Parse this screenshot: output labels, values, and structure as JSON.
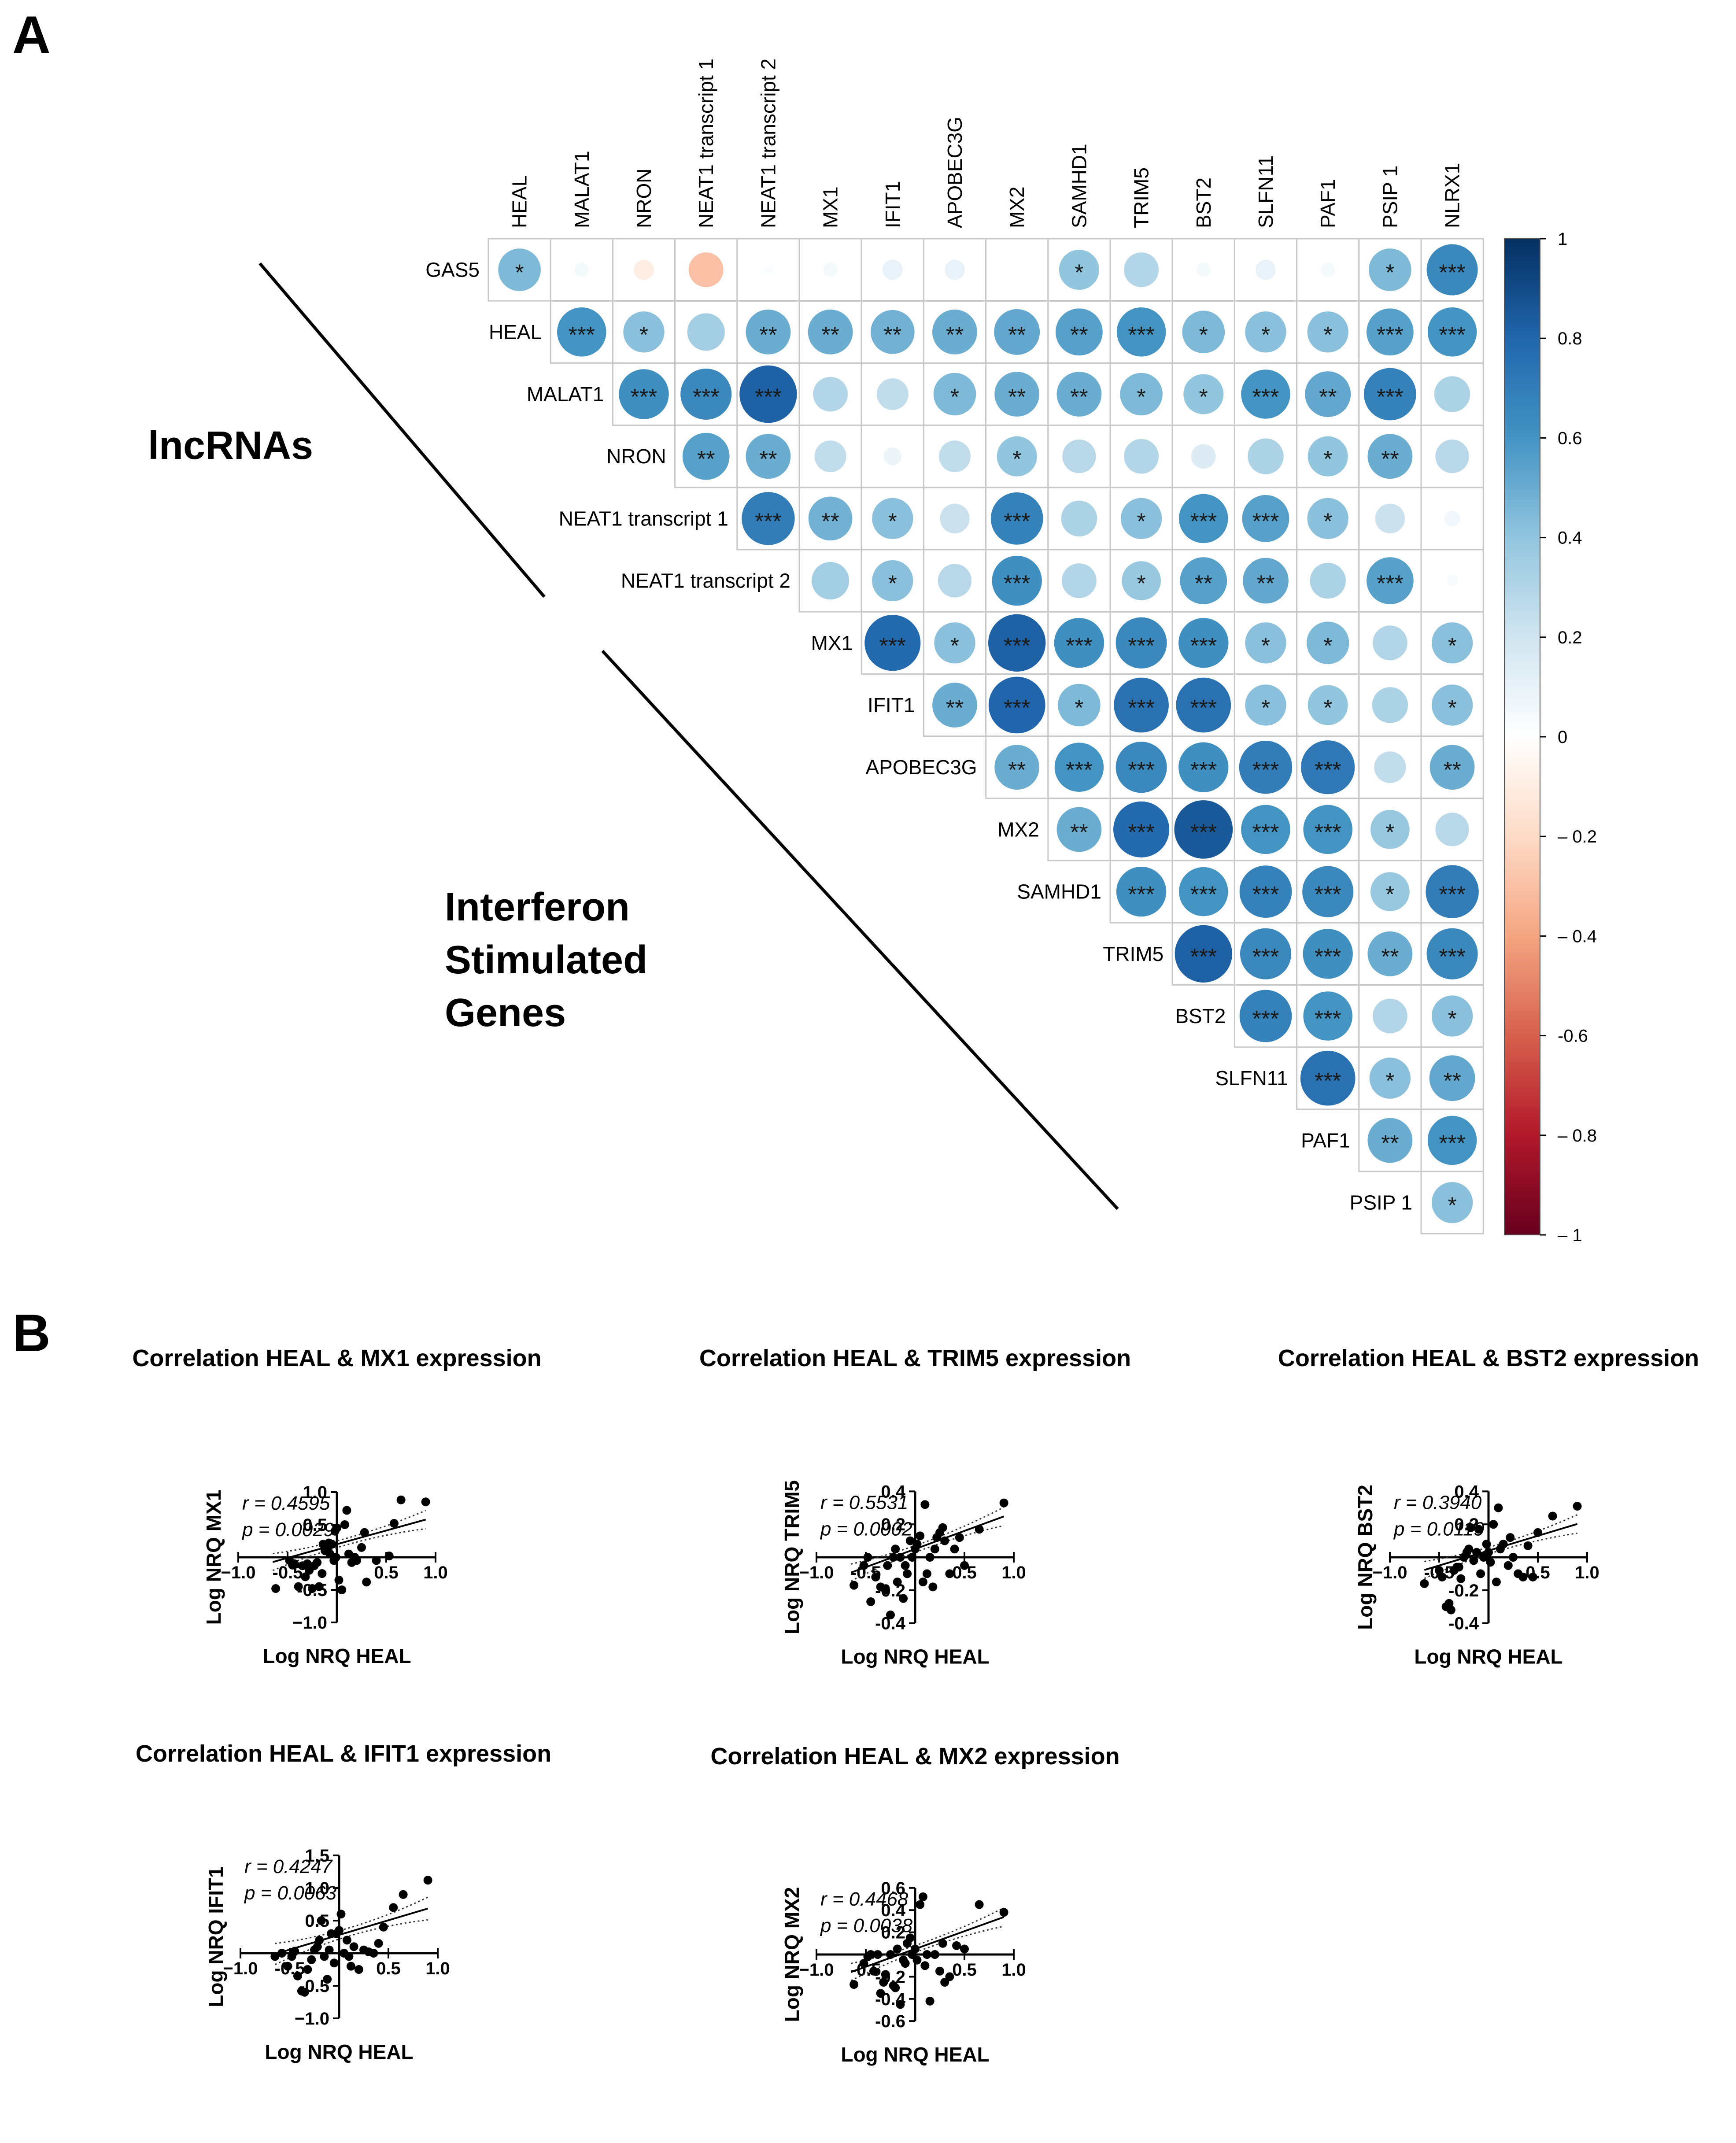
{
  "panel_a_label": "A",
  "panel_b_label": "B",
  "section_labels": {
    "lncrnas": "lncRNAs",
    "isg": [
      "Interferon",
      "Stimulated",
      "Genes"
    ]
  },
  "chart_data": [
    {
      "type": "heatmap",
      "subtype": "correlation-circles",
      "col_labels": [
        "HEAL",
        "MALAT1",
        "NRON",
        "NEAT1 transcript 1",
        "NEAT1 transcript 2",
        "MX1",
        "IFIT1",
        "APOBEC3G",
        "MX2",
        "SAMHD1",
        "TRIM5",
        "BST2",
        "SLFN11",
        "PAF1",
        "PSIP 1",
        "NLRX1"
      ],
      "row_labels": [
        "GAS5",
        "HEAL",
        "MALAT1",
        "NRON",
        "NEAT1 transcript 1",
        "NEAT1 transcript 2",
        "MX1",
        "IFIT1",
        "APOBEC3G",
        "MX2",
        "SAMHD1",
        "TRIM5",
        "BST2",
        "SLFN11",
        "PAF1",
        "PSIP 1"
      ],
      "colorbar_ticks": [
        "1",
        "0.8",
        "0.6",
        "0.4",
        "0.2",
        "0",
        "– 0.2",
        "– 0.4",
        "-0.6",
        "– 0.8",
        "– 1"
      ],
      "colorbar_range": [
        -1,
        1
      ],
      "values": [
        [
          0.45,
          0.05,
          -0.1,
          -0.3,
          0.02,
          0.05,
          0.1,
          0.1,
          0,
          0.4,
          0.3,
          0.05,
          0.1,
          0.05,
          0.45,
          0.65
        ],
        [
          null,
          0.6,
          0.42,
          0.35,
          0.5,
          0.5,
          0.48,
          0.5,
          0.52,
          0.55,
          0.6,
          0.45,
          0.42,
          0.42,
          0.55,
          0.6
        ],
        [
          null,
          null,
          0.62,
          0.65,
          0.82,
          0.3,
          0.25,
          0.45,
          0.5,
          0.5,
          0.45,
          0.4,
          0.6,
          0.52,
          0.68,
          0.32
        ],
        [
          null,
          null,
          null,
          0.55,
          0.5,
          0.25,
          0.08,
          0.25,
          0.4,
          0.28,
          0.3,
          0.15,
          0.32,
          0.4,
          0.5,
          0.28
        ],
        [
          null,
          null,
          null,
          null,
          0.7,
          0.48,
          0.42,
          0.22,
          0.68,
          0.32,
          0.42,
          0.6,
          0.55,
          0.42,
          0.22,
          0.06
        ],
        [
          null,
          null,
          null,
          null,
          null,
          0.35,
          0.42,
          0.28,
          0.62,
          0.3,
          0.38,
          0.55,
          0.52,
          0.32,
          0.55,
          0.03
        ],
        [
          null,
          null,
          null,
          null,
          null,
          null,
          0.78,
          0.42,
          0.82,
          0.62,
          0.65,
          0.62,
          0.42,
          0.45,
          0.3,
          0.42
        ],
        [
          null,
          null,
          null,
          null,
          null,
          null,
          null,
          0.5,
          0.8,
          0.45,
          0.75,
          0.75,
          0.42,
          0.4,
          0.32,
          0.42
        ],
        [
          null,
          null,
          null,
          null,
          null,
          null,
          null,
          null,
          0.5,
          0.6,
          0.65,
          0.62,
          0.7,
          0.72,
          0.25,
          0.5
        ],
        [
          null,
          null,
          null,
          null,
          null,
          null,
          null,
          null,
          null,
          0.5,
          0.78,
          0.85,
          0.6,
          0.6,
          0.38,
          0.28
        ],
        [
          null,
          null,
          null,
          null,
          null,
          null,
          null,
          null,
          null,
          null,
          0.62,
          0.6,
          0.68,
          0.65,
          0.38,
          0.7
        ],
        [
          null,
          null,
          null,
          null,
          null,
          null,
          null,
          null,
          null,
          null,
          null,
          0.82,
          0.65,
          0.62,
          0.5,
          0.65
        ],
        [
          null,
          null,
          null,
          null,
          null,
          null,
          null,
          null,
          null,
          null,
          null,
          null,
          0.68,
          0.6,
          0.3,
          0.42
        ],
        [
          null,
          null,
          null,
          null,
          null,
          null,
          null,
          null,
          null,
          null,
          null,
          null,
          null,
          0.75,
          0.42,
          0.52
        ],
        [
          null,
          null,
          null,
          null,
          null,
          null,
          null,
          null,
          null,
          null,
          null,
          null,
          null,
          null,
          0.5,
          0.6
        ],
        [
          null,
          null,
          null,
          null,
          null,
          null,
          null,
          null,
          null,
          null,
          null,
          null,
          null,
          null,
          null,
          0.42
        ]
      ],
      "significance": [
        [
          "*",
          "",
          "",
          "",
          "",
          "",
          "",
          "",
          "",
          "*",
          "",
          "",
          "",
          "",
          "*",
          "***"
        ],
        [
          "",
          "***",
          "*",
          "",
          "**",
          "**",
          "**",
          "**",
          "**",
          "**",
          "***",
          "*",
          "*",
          "*",
          "***",
          "***"
        ],
        [
          "",
          "",
          "***",
          "***",
          "***",
          "",
          "",
          "*",
          "**",
          "**",
          "*",
          "*",
          "***",
          "**",
          "***",
          ""
        ],
        [
          "",
          "",
          "",
          "**",
          "**",
          "",
          "",
          "",
          "*",
          "",
          "",
          "",
          "",
          "*",
          "**",
          ""
        ],
        [
          "",
          "",
          "",
          "",
          "***",
          "**",
          "*",
          "",
          "***",
          "",
          "*",
          "***",
          "***",
          "*",
          "",
          ""
        ],
        [
          "",
          "",
          "",
          "",
          "",
          "",
          "*",
          "",
          "***",
          "",
          "*",
          "**",
          "**",
          "",
          "***",
          ""
        ],
        [
          "",
          "",
          "",
          "",
          "",
          "",
          "***",
          "*",
          "***",
          "***",
          "***",
          "***",
          "*",
          "*",
          "",
          "*"
        ],
        [
          "",
          "",
          "",
          "",
          "",
          "",
          "",
          "**",
          "***",
          "*",
          "***",
          "***",
          "*",
          "*",
          "",
          "*"
        ],
        [
          "",
          "",
          "",
          "",
          "",
          "",
          "",
          "",
          "**",
          "***",
          "***",
          "***",
          "***",
          "***",
          "",
          "**"
        ],
        [
          "",
          "",
          "",
          "",
          "",
          "",
          "",
          "",
          "",
          "**",
          "***",
          "***",
          "***",
          "***",
          "*",
          ""
        ],
        [
          "",
          "",
          "",
          "",
          "",
          "",
          "",
          "",
          "",
          "",
          "***",
          "***",
          "***",
          "***",
          "*",
          "***"
        ],
        [
          "",
          "",
          "",
          "",
          "",
          "",
          "",
          "",
          "",
          "",
          "",
          "***",
          "***",
          "***",
          "**",
          "***"
        ],
        [
          "",
          "",
          "",
          "",
          "",
          "",
          "",
          "",
          "",
          "",
          "",
          "",
          "***",
          "***",
          "",
          "*"
        ],
        [
          "",
          "",
          "",
          "",
          "",
          "",
          "",
          "",
          "",
          "",
          "",
          "",
          "",
          "***",
          "*",
          "**"
        ],
        [
          "",
          "",
          "",
          "",
          "",
          "",
          "",
          "",
          "",
          "",
          "",
          "",
          "",
          "",
          "**",
          "***"
        ],
        [
          "",
          "",
          "",
          "",
          "",
          "",
          "",
          "",
          "",
          "",
          "",
          "",
          "",
          "",
          "",
          "*"
        ]
      ]
    },
    {
      "type": "scatter",
      "title": "Correlation HEAL & MX1 expression",
      "xlabel": "Log NRQ HEAL",
      "ylabel": "Log NRQ MX1",
      "xlim": [
        -1.0,
        1.0
      ],
      "ylim": [
        -1.0,
        1.0
      ],
      "xticks": [
        "−1.0",
        "-0.5",
        "0.5",
        "1.0"
      ],
      "xtick_values": [
        -1.0,
        -0.5,
        0.5,
        1.0
      ],
      "yticks": [
        "1.0",
        "0.5",
        "-0.5",
        "−1.0"
      ],
      "ytick_values": [
        1.0,
        0.5,
        -0.5,
        -1.0
      ],
      "r": "r = 0.4595",
      "p": "p = 0.0029",
      "slope": 0.42,
      "intercept": 0.2,
      "x": [
        -0.62,
        -0.48,
        -0.45,
        -0.43,
        -0.39,
        -0.35,
        -0.32,
        -0.3,
        -0.28,
        -0.25,
        -0.23,
        -0.2,
        -0.18,
        -0.15,
        -0.14,
        -0.12,
        -0.1,
        -0.08,
        -0.07,
        -0.05,
        -0.03,
        -0.02,
        -0.01,
        0.0,
        0.02,
        0.05,
        0.08,
        0.1,
        0.12,
        0.15,
        0.18,
        0.2,
        0.25,
        0.28,
        0.3,
        0.4,
        0.53,
        0.58,
        0.65,
        0.9
      ],
      "y": [
        -0.48,
        -0.05,
        -0.12,
        -0.1,
        -0.45,
        -0.13,
        -0.3,
        -0.1,
        -0.2,
        -0.48,
        -0.13,
        -0.08,
        -0.45,
        -0.25,
        0.2,
        0.1,
        0.15,
        0.22,
        0.05,
        0.2,
        -0.05,
        0.4,
        0.0,
        0.45,
        -0.35,
        -0.5,
        0.5,
        0.72,
        0.05,
        -0.08,
        0.0,
        -0.05,
        0.15,
        0.38,
        -0.38,
        -0.05,
        0.02,
        0.52,
        0.88,
        0.85
      ]
    },
    {
      "type": "scatter",
      "title": "Correlation HEAL & TRIM5 expression",
      "xlabel": "Log NRQ HEAL",
      "ylabel": "Log NRQ TRIM5",
      "xlim": [
        -1.0,
        1.0
      ],
      "ylim": [
        -0.4,
        0.4
      ],
      "xticks": [
        "−1.0",
        "-0.5",
        "0.5",
        "1.0"
      ],
      "xtick_values": [
        -1.0,
        -0.5,
        0.5,
        1.0
      ],
      "yticks": [
        "0.4",
        "0.2",
        "-0.2",
        "-0.4"
      ],
      "ytick_values": [
        0.4,
        0.2,
        -0.2,
        -0.4
      ],
      "r": "r = 0.5531",
      "p": "p = 0.0002",
      "slope": 0.22,
      "intercept": 0.05,
      "x": [
        -0.62,
        -0.52,
        -0.48,
        -0.45,
        -0.4,
        -0.35,
        -0.3,
        -0.28,
        -0.25,
        -0.22,
        -0.2,
        -0.18,
        -0.15,
        -0.12,
        -0.1,
        -0.08,
        -0.05,
        -0.03,
        0.0,
        0.02,
        0.05,
        0.08,
        0.1,
        0.12,
        0.15,
        0.18,
        0.2,
        0.22,
        0.25,
        0.28,
        0.3,
        0.35,
        0.4,
        0.45,
        0.5,
        0.65,
        0.9
      ],
      "y": [
        -0.17,
        -0.05,
        0.0,
        -0.27,
        -0.12,
        -0.18,
        -0.2,
        -0.05,
        -0.35,
        0.0,
        0.05,
        -0.15,
        0.0,
        -0.25,
        -0.05,
        -0.1,
        0.1,
        0.0,
        0.05,
        0.08,
        0.13,
        -0.15,
        0.32,
        -0.1,
        0.0,
        -0.18,
        0.05,
        0.12,
        0.15,
        0.18,
        0.1,
        -0.1,
        0.05,
        0.12,
        -0.05,
        0.17,
        0.33
      ]
    },
    {
      "type": "scatter",
      "title": "Correlation HEAL & BST2 expression",
      "xlabel": "Log NRQ HEAL",
      "ylabel": "Log NRQ BST2",
      "xlim": [
        -1.0,
        1.0
      ],
      "ylim": [
        -0.4,
        0.4
      ],
      "xticks": [
        "−1.0",
        "-0.5",
        "0.5",
        "1.0"
      ],
      "xtick_values": [
        -1.0,
        -0.5,
        0.5,
        1.0
      ],
      "yticks": [
        "0.4",
        "0.2",
        "-0.2",
        "-0.4"
      ],
      "ytick_values": [
        0.4,
        0.2,
        -0.2,
        -0.4
      ],
      "r": "r = 0.3940",
      "p": "p = 0.0119",
      "slope": 0.18,
      "intercept": 0.04,
      "x": [
        -0.65,
        -0.5,
        -0.47,
        -0.43,
        -0.4,
        -0.38,
        -0.35,
        -0.32,
        -0.3,
        -0.28,
        -0.25,
        -0.22,
        -0.2,
        -0.18,
        -0.15,
        -0.12,
        -0.1,
        -0.08,
        -0.05,
        -0.02,
        0.0,
        0.02,
        0.05,
        0.08,
        0.1,
        0.12,
        0.15,
        0.2,
        0.22,
        0.25,
        0.3,
        0.35,
        0.4,
        0.45,
        0.5,
        0.65,
        0.9
      ],
      "y": [
        -0.16,
        -0.08,
        -0.12,
        -0.3,
        -0.28,
        -0.32,
        -0.08,
        -0.06,
        -0.06,
        -0.13,
        0.0,
        0.03,
        0.05,
        0.18,
        -0.02,
        0.03,
        0.17,
        -0.1,
        0.0,
        0.08,
        0.03,
        -0.03,
        0.2,
        -0.15,
        0.3,
        0.05,
        0.08,
        -0.05,
        0.12,
        0.0,
        -0.1,
        -0.12,
        0.07,
        -0.12,
        0.15,
        0.25,
        0.31
      ]
    },
    {
      "type": "scatter",
      "title": "Correlation HEAL & IFIT1 expression",
      "xlabel": "Log NRQ HEAL",
      "ylabel": "Log NRQ IFIT1",
      "xlim": [
        -1.0,
        1.0
      ],
      "ylim": [
        -1.0,
        1.5
      ],
      "xticks": [
        "−1.0",
        "-0.5",
        "0.5",
        "1.0"
      ],
      "xtick_values": [
        -1.0,
        -0.5,
        0.5,
        1.0
      ],
      "yticks": [
        "1.5",
        "1.0",
        "0.5",
        "-0.5",
        "−1.0"
      ],
      "ytick_values": [
        1.5,
        1.0,
        0.5,
        -0.5,
        -1.0
      ],
      "r": "r = 0.4247",
      "p": "p = 0.0063",
      "slope": 0.45,
      "intercept": 0.28,
      "x": [
        -0.65,
        -0.58,
        -0.52,
        -0.48,
        -0.45,
        -0.42,
        -0.38,
        -0.35,
        -0.32,
        -0.28,
        -0.25,
        -0.22,
        -0.2,
        -0.18,
        -0.15,
        -0.12,
        -0.1,
        -0.08,
        -0.05,
        -0.03,
        0.0,
        0.02,
        0.05,
        0.08,
        0.1,
        0.12,
        0.15,
        0.2,
        0.25,
        0.3,
        0.35,
        0.4,
        0.45,
        0.55,
        0.65,
        0.9
      ],
      "y": [
        -0.05,
        0.0,
        -0.2,
        -0.05,
        0.03,
        -0.35,
        -0.58,
        -0.6,
        -0.25,
        -0.1,
        0.05,
        0.1,
        0.2,
        0.5,
        -0.05,
        -0.4,
        0.05,
        0.3,
        -0.15,
        0.3,
        0.35,
        0.6,
        0.0,
        0.2,
        -0.05,
        -0.2,
        0.1,
        -0.25,
        0.05,
        0.02,
        0.0,
        0.15,
        0.4,
        0.7,
        0.9,
        1.12
      ]
    },
    {
      "type": "scatter",
      "title": "Correlation HEAL & MX2 expression",
      "xlabel": "Log NRQ HEAL",
      "ylabel": "Log NRQ MX2",
      "xlim": [
        -1.0,
        1.0
      ],
      "ylim": [
        -0.6,
        0.6
      ],
      "xticks": [
        "−1.0",
        "-0.5",
        "0.5",
        "1.0"
      ],
      "xtick_values": [
        -1.0,
        -0.5,
        0.5,
        1.0
      ],
      "yticks": [
        "0.6",
        "0.4",
        "0.2",
        "-0.2",
        "-0.4",
        "-0.6"
      ],
      "ytick_values": [
        0.6,
        0.4,
        0.2,
        -0.2,
        -0.4,
        -0.6
      ],
      "r": "r = 0.4468",
      "p": "p = 0.0038",
      "slope": 0.32,
      "intercept": 0.05,
      "x": [
        -0.62,
        -0.52,
        -0.48,
        -0.45,
        -0.42,
        -0.38,
        -0.35,
        -0.32,
        -0.3,
        -0.25,
        -0.22,
        -0.2,
        -0.18,
        -0.15,
        -0.12,
        -0.1,
        -0.08,
        -0.05,
        -0.03,
        0.0,
        0.02,
        0.05,
        0.08,
        0.1,
        0.12,
        0.15,
        0.2,
        0.25,
        0.28,
        0.3,
        0.35,
        0.42,
        0.5,
        0.65,
        0.9
      ],
      "y": [
        -0.27,
        -0.08,
        -0.02,
        0.0,
        -0.15,
        0.0,
        -0.35,
        -0.25,
        -0.18,
        0.0,
        -0.28,
        -0.3,
        0.05,
        -0.45,
        -0.05,
        -0.08,
        0.1,
        0.15,
        0.0,
        0.05,
        -0.05,
        0.45,
        0.52,
        -0.1,
        0.0,
        -0.42,
        0.0,
        -0.15,
        0.1,
        -0.25,
        -0.2,
        0.08,
        0.05,
        0.45,
        0.38
      ]
    }
  ]
}
